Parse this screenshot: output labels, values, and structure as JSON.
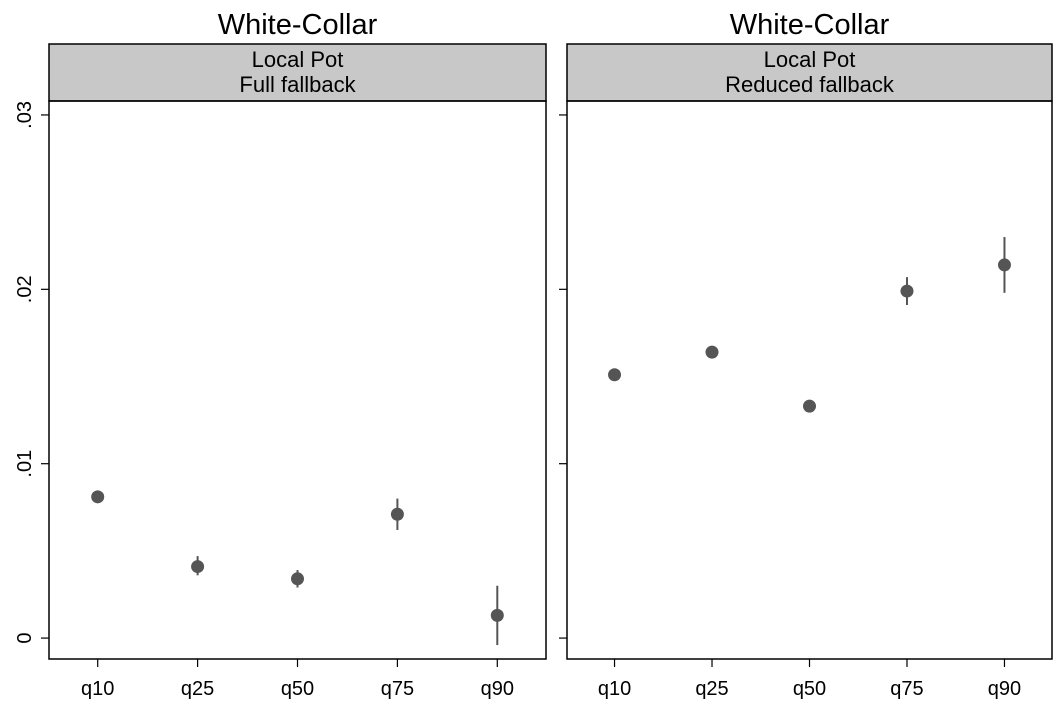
{
  "chart_data": [
    {
      "type": "scatter",
      "title": "White-Collar",
      "strip_lines": [
        "Local Pot",
        "Full fallback"
      ],
      "categories": [
        "q10",
        "q25",
        "q50",
        "q75",
        "q90"
      ],
      "values": [
        0.0081,
        0.0041,
        0.0034,
        0.0071,
        0.0013
      ],
      "ci_low": [
        0.0079,
        0.0036,
        0.0029,
        0.0062,
        -0.0004
      ],
      "ci_high": [
        0.0083,
        0.0047,
        0.0039,
        0.008,
        0.003
      ],
      "ylim": [
        -0.0012,
        0.0308
      ],
      "yticks": [
        0,
        0.01,
        0.02,
        0.03
      ],
      "ytick_labels": [
        "0",
        ".01",
        ".02",
        ".03"
      ],
      "grid": false,
      "marker_color": "#555555",
      "strip_color": "#c8c8c8"
    },
    {
      "type": "scatter",
      "title": "White-Collar",
      "strip_lines": [
        "Local Pot",
        "Reduced fallback"
      ],
      "categories": [
        "q10",
        "q25",
        "q50",
        "q75",
        "q90"
      ],
      "values": [
        0.0151,
        0.0164,
        0.0133,
        0.0199,
        0.0214
      ],
      "ci_low": [
        0.0149,
        0.0161,
        0.013,
        0.0191,
        0.0198
      ],
      "ci_high": [
        0.0153,
        0.0167,
        0.0136,
        0.0207,
        0.023
      ],
      "ylim": [
        -0.0012,
        0.0308
      ],
      "yticks": [
        0,
        0.01,
        0.02,
        0.03
      ],
      "ytick_labels": [
        "",
        "",
        "",
        ""
      ],
      "grid": false,
      "marker_color": "#555555",
      "strip_color": "#c8c8c8"
    }
  ]
}
